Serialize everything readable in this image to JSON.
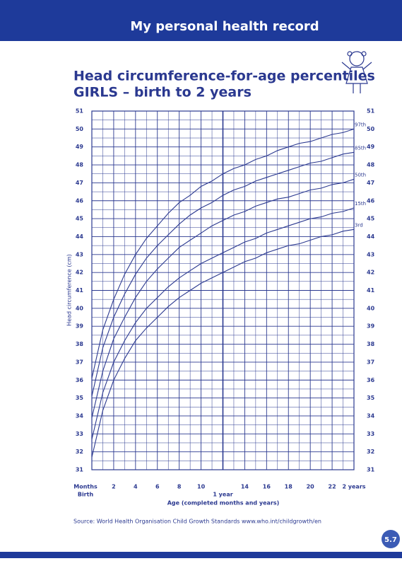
{
  "header": {
    "title": "My personal health record"
  },
  "chart_data": {
    "type": "line",
    "title": "Head circumference-for-age percentiles",
    "subtitle": "GIRLS – birth to 2 years",
    "ylabel": "Head circumference (cm)",
    "xlabel": "Age (completed months and years)",
    "start_label": "Birth",
    "x": [
      0,
      1,
      2,
      3,
      4,
      5,
      6,
      7,
      8,
      9,
      10,
      11,
      12,
      13,
      14,
      15,
      16,
      17,
      18,
      19,
      20,
      21,
      22,
      23,
      24
    ],
    "xlim": [
      0,
      24
    ],
    "xticks": [
      {
        "value": 0,
        "label": "Months"
      },
      2,
      4,
      6,
      8,
      10,
      {
        "value": 12,
        "label": "1 year"
      },
      14,
      16,
      18,
      20,
      22,
      {
        "value": 24,
        "label": "2 years"
      }
    ],
    "ylim": [
      31,
      51
    ],
    "yticks": [
      31,
      32,
      33,
      34,
      35,
      36,
      37,
      38,
      39,
      40,
      41,
      42,
      43,
      44,
      45,
      46,
      47,
      48,
      49,
      50,
      51
    ],
    "grid": true,
    "series": [
      {
        "name": "3rd",
        "color": "#2b3990",
        "values": [
          31.7,
          34.3,
          36.0,
          37.2,
          38.2,
          38.9,
          39.5,
          40.1,
          40.6,
          41.0,
          41.4,
          41.7,
          42.0,
          42.3,
          42.6,
          42.8,
          43.1,
          43.3,
          43.5,
          43.6,
          43.8,
          44.0,
          44.1,
          44.3,
          44.4
        ]
      },
      {
        "name": "15th",
        "color": "#2b3990",
        "values": [
          32.7,
          35.3,
          37.0,
          38.2,
          39.2,
          40.0,
          40.6,
          41.2,
          41.7,
          42.1,
          42.5,
          42.8,
          43.1,
          43.4,
          43.7,
          43.9,
          44.2,
          44.4,
          44.6,
          44.8,
          45.0,
          45.1,
          45.3,
          45.4,
          45.6
        ]
      },
      {
        "name": "50th",
        "color": "#2b3990",
        "values": [
          33.9,
          36.5,
          38.3,
          39.5,
          40.6,
          41.5,
          42.2,
          42.8,
          43.4,
          43.8,
          44.2,
          44.6,
          44.9,
          45.2,
          45.4,
          45.7,
          45.9,
          46.1,
          46.2,
          46.4,
          46.6,
          46.7,
          46.9,
          47.0,
          47.2
        ]
      },
      {
        "name": "85th",
        "color": "#2b3990",
        "values": [
          35.1,
          37.8,
          39.5,
          40.8,
          41.9,
          42.8,
          43.5,
          44.1,
          44.7,
          45.2,
          45.6,
          45.9,
          46.3,
          46.6,
          46.8,
          47.1,
          47.3,
          47.5,
          47.7,
          47.9,
          48.1,
          48.2,
          48.4,
          48.6,
          48.7
        ]
      },
      {
        "name": "97th",
        "color": "#2b3990",
        "values": [
          36.1,
          38.8,
          40.5,
          41.9,
          43.0,
          43.9,
          44.6,
          45.3,
          45.9,
          46.3,
          46.8,
          47.1,
          47.5,
          47.8,
          48.0,
          48.3,
          48.5,
          48.8,
          49.0,
          49.2,
          49.3,
          49.5,
          49.7,
          49.8,
          50.0
        ]
      }
    ]
  },
  "footer": {
    "source": "Source: World Health Organisation Child Growth Standards www.who.int/childgrowth/en",
    "page": "5.7"
  }
}
